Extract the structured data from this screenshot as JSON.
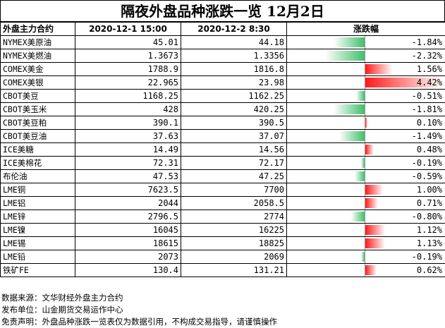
{
  "title": "隔夜外盘品种涨跌一览 12月2日",
  "headers": {
    "name": "外盘主力合约",
    "date1": "2020-12-1 15:00",
    "date2": "2020-12-2 8:30",
    "change": "涨跌幅"
  },
  "rows": [
    {
      "name": "NYMEX美原油",
      "v1": "45.01",
      "v2": "44.18",
      "change": "-1.84%",
      "pct": -1.84
    },
    {
      "name": "NYMEX美燃油",
      "v1": "1.3673",
      "v2": "1.3356",
      "change": "-2.32%",
      "pct": -2.32
    },
    {
      "name": "COMEX美金",
      "v1": "1788.9",
      "v2": "1816.8",
      "change": "1.56%",
      "pct": 1.56
    },
    {
      "name": "COMEX美银",
      "v1": "22.965",
      "v2": "23.98",
      "change": "4.42%",
      "pct": 4.42
    },
    {
      "name": "CBOT美豆",
      "v1": "1168.25",
      "v2": "1162.25",
      "change": "-0.51%",
      "pct": -0.51
    },
    {
      "name": "CBOT美玉米",
      "v1": "428",
      "v2": "420.25",
      "change": "-1.81%",
      "pct": -1.81
    },
    {
      "name": "CBOT美豆粕",
      "v1": "390.1",
      "v2": "390.5",
      "change": "0.10%",
      "pct": 0.1
    },
    {
      "name": "CBOT美豆油",
      "v1": "37.63",
      "v2": "37.07",
      "change": "-1.49%",
      "pct": -1.49
    },
    {
      "name": "ICE美糖",
      "v1": "14.49",
      "v2": "14.56",
      "change": "0.48%",
      "pct": 0.48
    },
    {
      "name": "ICE美棉花",
      "v1": "72.31",
      "v2": "72.17",
      "change": "-0.19%",
      "pct": -0.19
    },
    {
      "name": "布伦油",
      "v1": "47.53",
      "v2": "47.25",
      "change": "-0.59%",
      "pct": -0.59
    },
    {
      "name": "LME铜",
      "v1": "7623.5",
      "v2": "7700",
      "change": "1.00%",
      "pct": 1.0
    },
    {
      "name": "LME铝",
      "v1": "2044",
      "v2": "2058.5",
      "change": "0.71%",
      "pct": 0.71
    },
    {
      "name": "LME锌",
      "v1": "2796.5",
      "v2": "2774",
      "change": "-0.80%",
      "pct": -0.8
    },
    {
      "name": "LME镍",
      "v1": "16045",
      "v2": "16225",
      "change": "1.12%",
      "pct": 1.12
    },
    {
      "name": "LME锡",
      "v1": "18615",
      "v2": "18825",
      "change": "1.13%",
      "pct": 1.13
    },
    {
      "name": "LME铅",
      "v1": "2073",
      "v2": "2069",
      "change": "-0.19%",
      "pct": -0.19
    },
    {
      "name": "铁矿FE",
      "v1": "130.4",
      "v2": "131.21",
      "change": "0.62%",
      "pct": 0.62
    }
  ],
  "notes": {
    "source": "数据来源：文华财经外盘主力合约",
    "publisher": "发布单位：山金期货交易运作中心",
    "disclaimer": "免责声明：外盘品种涨跌一览表仅为数据引用，不构成交易指导，请谨慎操作"
  },
  "colors": {
    "negative": "#3fbf6a",
    "positive": "#ff1a1a"
  }
}
